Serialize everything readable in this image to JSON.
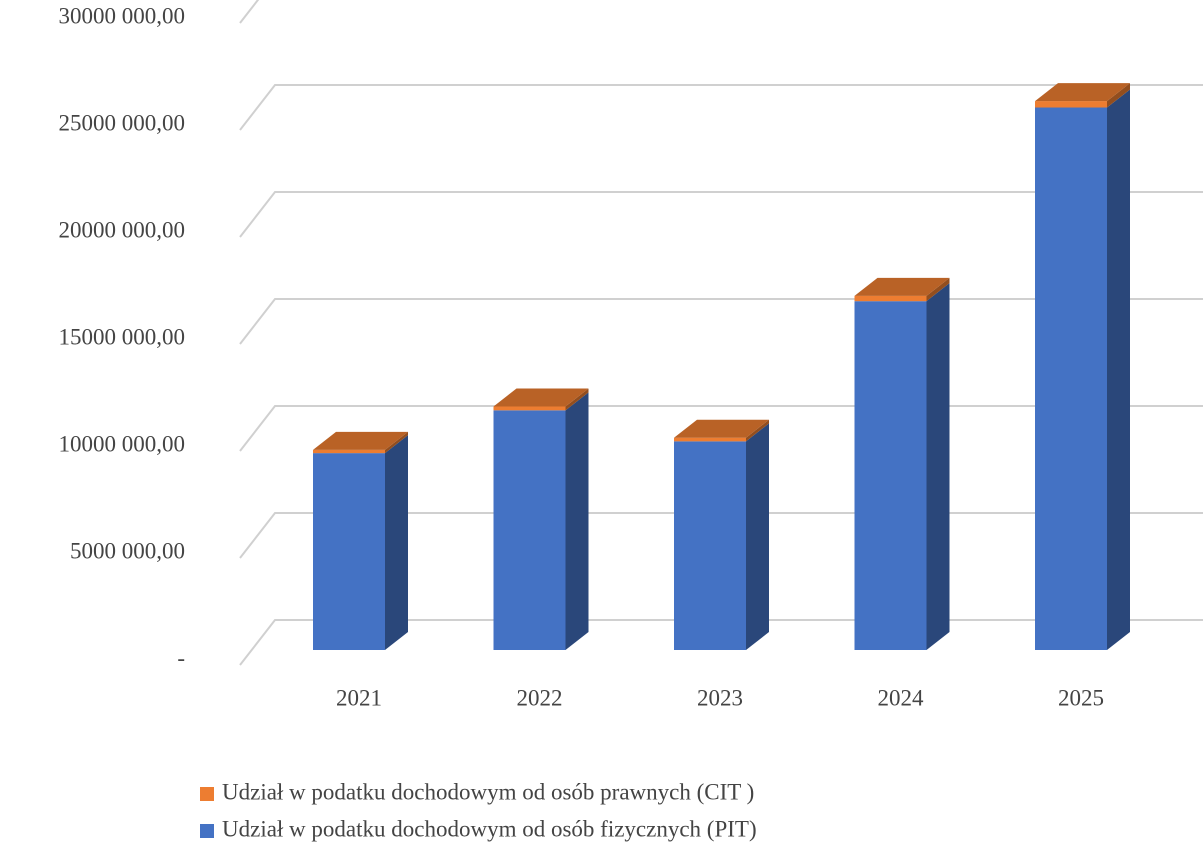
{
  "chart_data": {
    "type": "bar3d_stacked",
    "categories": [
      "2021",
      "2022",
      "2023",
      "2024",
      "2025"
    ],
    "series": [
      {
        "name": "Udział w podatku dochodowym od osób fizycznych (PIT)",
        "color": "#4472c4",
        "values": [
          9200000,
          11200000,
          9750000,
          16300000,
          25350000
        ]
      },
      {
        "name": "Udział w podatku dochodowym od osób prawnych (CIT )",
        "color": "#ed7d31",
        "values": [
          150000,
          180000,
          170000,
          250000,
          300000
        ]
      }
    ],
    "ylim": [
      0,
      30000000
    ],
    "yticks": [
      {
        "value": 0,
        "label": "-"
      },
      {
        "value": 5000000,
        "label": "5000 000,00"
      },
      {
        "value": 10000000,
        "label": "10000 000,00"
      },
      {
        "value": 15000000,
        "label": "15000 000,00"
      },
      {
        "value": 20000000,
        "label": "20000 000,00"
      },
      {
        "value": 25000000,
        "label": "25000 000,00"
      },
      {
        "value": 30000000,
        "label": "30000 000,00"
      }
    ],
    "grid": true,
    "legend": "bottom"
  }
}
